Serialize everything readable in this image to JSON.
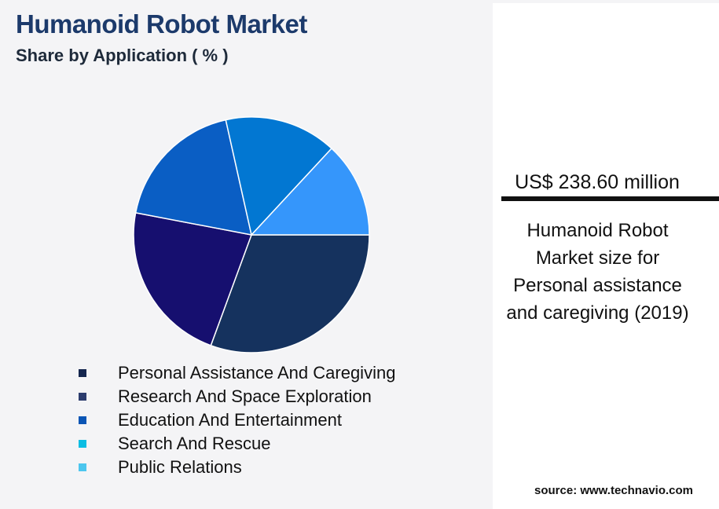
{
  "header": {
    "title": "Humanoid Robot Market",
    "subtitle": "Share by Application ( % )"
  },
  "chart_data": {
    "type": "pie",
    "categories": [
      "Personal Assistance And Caregiving",
      "Research And Space Exploration",
      "Education And Entertainment",
      "Search And Rescue",
      "Public Relations"
    ],
    "values": [
      30.6,
      22.4,
      18.5,
      15.4,
      13.1
    ],
    "slice_colors": [
      "#15325e",
      "#160f6f",
      "#0a5ec4",
      "#0277d2",
      "#3596fb"
    ],
    "legend": {
      "placement": "bottom",
      "entries": [
        {
          "label": "Personal Assistance And Caregiving",
          "color": "#15264f"
        },
        {
          "label": "Research And Space Exploration",
          "color": "#2d3d6e"
        },
        {
          "label": "Education And Entertainment",
          "color": "#0a55b5"
        },
        {
          "label": "Search And Rescue",
          "color": "#0bbde3"
        },
        {
          "label": "Public Relations",
          "color": "#4cc6ee"
        }
      ]
    }
  },
  "panel": {
    "value": "US$ 238.60 million",
    "description": "Humanoid Robot Market size for Personal assistance and caregiving (2019)",
    "source": "source: www.technavio.com"
  }
}
